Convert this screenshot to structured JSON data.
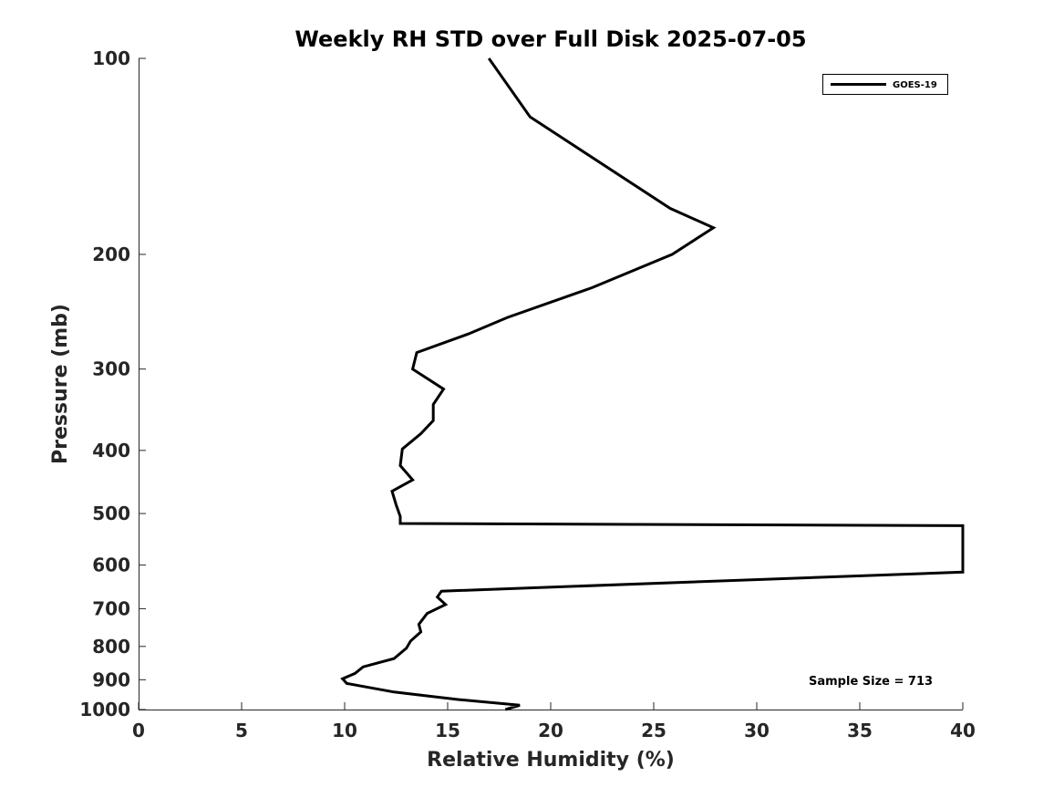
{
  "chart_data": {
    "type": "line",
    "title": "Weekly RH STD over Full Disk 2025-07-05",
    "xlabel": "Relative Humidity (%)",
    "ylabel": "Pressure (mb)",
    "xlim": [
      0,
      40
    ],
    "ylim": [
      100,
      1000
    ],
    "yscale": "log",
    "y_reversed": true,
    "grid": false,
    "legend_placement": "top-right",
    "xticks": [
      0,
      5,
      10,
      15,
      20,
      25,
      30,
      35,
      40
    ],
    "yticks": [
      100,
      200,
      300,
      400,
      500,
      600,
      700,
      800,
      900,
      1000
    ],
    "annotation": "Sample Size = 713",
    "series": [
      {
        "name": "GOES-19",
        "color": "#000000",
        "x": [
          17.0,
          19.0,
          25.8,
          27.9,
          25.9,
          22.0,
          17.9,
          16.0,
          13.5,
          13.3,
          14.8,
          14.3,
          14.3,
          13.7,
          12.8,
          12.7,
          13.3,
          12.3,
          12.5,
          12.7,
          12.7,
          40,
          40,
          14.7,
          14.5,
          14.9,
          14.0,
          13.6,
          13.7,
          13.2,
          13.0,
          12.4,
          10.9,
          10.5,
          9.9,
          10.1,
          12.4,
          15.5,
          18.5,
          17.8
        ],
        "y": [
          100,
          123,
          170,
          182,
          200,
          225,
          250,
          265,
          283,
          300,
          322,
          340,
          360,
          377,
          398,
          422,
          444,
          462,
          485,
          505,
          518,
          522,
          615,
          658,
          672,
          690,
          712,
          740,
          760,
          785,
          805,
          835,
          860,
          880,
          897,
          912,
          940,
          965,
          985,
          1000
        ]
      }
    ]
  }
}
